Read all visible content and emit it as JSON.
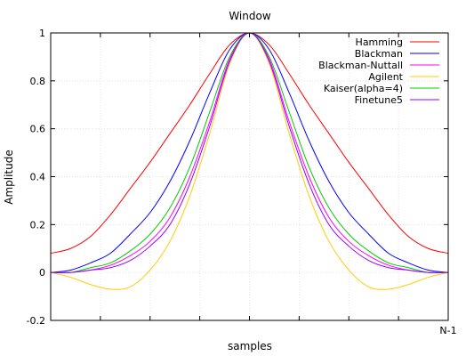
{
  "chart_data": {
    "type": "line",
    "title": "Window",
    "xlabel": "samples",
    "ylabel": "Amplitude",
    "xlim": [
      0,
      1
    ],
    "ylim": [
      -0.2,
      1
    ],
    "x_tick_labels": [
      {
        "x": 1,
        "label": "N-1"
      }
    ],
    "y_ticks": [
      -0.2,
      0,
      0.2,
      0.4,
      0.6,
      0.8,
      1
    ],
    "y_tick_labels": [
      "-0.2",
      "0",
      "0.2",
      "0.4",
      "0.6",
      "0.8",
      "1"
    ],
    "grid": true,
    "legend_position": "top-right",
    "x": [
      0,
      0.05,
      0.1,
      0.15,
      0.2,
      0.25,
      0.3,
      0.35,
      0.4,
      0.45,
      0.5,
      0.55,
      0.6,
      0.65,
      0.7,
      0.75,
      0.8,
      0.85,
      0.9,
      0.95,
      1
    ],
    "series": [
      {
        "name": "Hamming",
        "color": "#ff0000",
        "values": [
          0.08,
          0.1,
          0.15,
          0.24,
          0.35,
          0.46,
          0.58,
          0.7,
          0.83,
          0.95,
          1.0,
          0.95,
          0.83,
          0.7,
          0.58,
          0.46,
          0.35,
          0.24,
          0.15,
          0.1,
          0.08
        ]
      },
      {
        "name": "Blackman",
        "color": "#0000ff",
        "values": [
          0.0,
          0.01,
          0.04,
          0.08,
          0.16,
          0.25,
          0.38,
          0.55,
          0.75,
          0.93,
          1.0,
          0.93,
          0.75,
          0.55,
          0.38,
          0.25,
          0.16,
          0.08,
          0.04,
          0.01,
          0.0
        ]
      },
      {
        "name": "Blackman-Nuttall",
        "color": "#ff00ff",
        "values": [
          0.0,
          0.0,
          0.01,
          0.03,
          0.07,
          0.13,
          0.23,
          0.4,
          0.63,
          0.89,
          1.0,
          0.89,
          0.63,
          0.4,
          0.23,
          0.13,
          0.07,
          0.03,
          0.01,
          0.0,
          0.0
        ]
      },
      {
        "name": "Agilent",
        "color": "#ffcc00",
        "values": [
          0.0,
          -0.02,
          -0.05,
          -0.07,
          -0.06,
          0.01,
          0.13,
          0.32,
          0.58,
          0.87,
          1.0,
          0.87,
          0.58,
          0.32,
          0.13,
          0.01,
          -0.06,
          -0.07,
          -0.05,
          -0.02,
          0.0
        ]
      },
      {
        "name": "Kaiser(alpha=4)",
        "color": "#00cc00",
        "values": [
          0.0,
          0.0,
          0.02,
          0.04,
          0.09,
          0.16,
          0.27,
          0.44,
          0.67,
          0.9,
          1.0,
          0.9,
          0.67,
          0.44,
          0.27,
          0.16,
          0.09,
          0.04,
          0.02,
          0.0,
          0.0
        ]
      },
      {
        "name": "Finetune5",
        "color": "#9900ff",
        "values": [
          0.0,
          0.0,
          0.01,
          0.02,
          0.05,
          0.11,
          0.2,
          0.37,
          0.61,
          0.88,
          1.0,
          0.88,
          0.61,
          0.37,
          0.2,
          0.11,
          0.05,
          0.02,
          0.01,
          0.0,
          0.0
        ]
      }
    ]
  }
}
